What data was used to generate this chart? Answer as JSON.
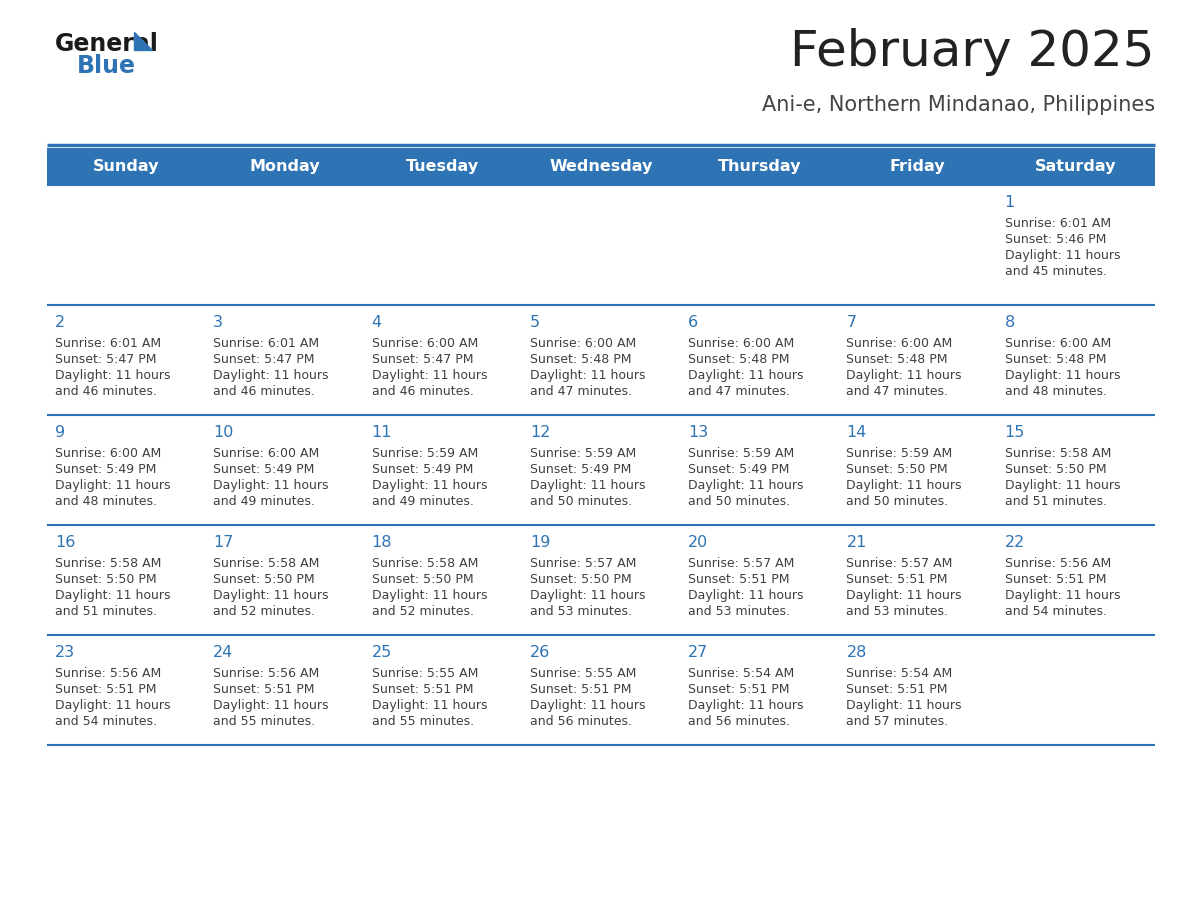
{
  "title": "February 2025",
  "subtitle": "Ani-e, Northern Mindanao, Philippines",
  "days_of_week": [
    "Sunday",
    "Monday",
    "Tuesday",
    "Wednesday",
    "Thursday",
    "Friday",
    "Saturday"
  ],
  "header_bg": "#2E74B5",
  "header_text": "#FFFFFF",
  "row_bg": "#FFFFFF",
  "separator_color": "#2E74B5",
  "day_number_color": "#2E74B5",
  "cell_text_color": "#404040",
  "title_color": "#222222",
  "subtitle_color": "#444444",
  "logo_general_color": "#1a1a1a",
  "logo_blue_color": "#2E74B5",
  "logo_triangle_color": "#2E74B5",
  "calendar": [
    [
      {
        "day": null,
        "sunrise": null,
        "sunset": null,
        "daylight": null
      },
      {
        "day": null,
        "sunrise": null,
        "sunset": null,
        "daylight": null
      },
      {
        "day": null,
        "sunrise": null,
        "sunset": null,
        "daylight": null
      },
      {
        "day": null,
        "sunrise": null,
        "sunset": null,
        "daylight": null
      },
      {
        "day": null,
        "sunrise": null,
        "sunset": null,
        "daylight": null
      },
      {
        "day": null,
        "sunrise": null,
        "sunset": null,
        "daylight": null
      },
      {
        "day": 1,
        "sunrise": "6:01 AM",
        "sunset": "5:46 PM",
        "daylight": "11 hours and 45 minutes."
      }
    ],
    [
      {
        "day": 2,
        "sunrise": "6:01 AM",
        "sunset": "5:47 PM",
        "daylight": "11 hours and 46 minutes."
      },
      {
        "day": 3,
        "sunrise": "6:01 AM",
        "sunset": "5:47 PM",
        "daylight": "11 hours and 46 minutes."
      },
      {
        "day": 4,
        "sunrise": "6:00 AM",
        "sunset": "5:47 PM",
        "daylight": "11 hours and 46 minutes."
      },
      {
        "day": 5,
        "sunrise": "6:00 AM",
        "sunset": "5:48 PM",
        "daylight": "11 hours and 47 minutes."
      },
      {
        "day": 6,
        "sunrise": "6:00 AM",
        "sunset": "5:48 PM",
        "daylight": "11 hours and 47 minutes."
      },
      {
        "day": 7,
        "sunrise": "6:00 AM",
        "sunset": "5:48 PM",
        "daylight": "11 hours and 47 minutes."
      },
      {
        "day": 8,
        "sunrise": "6:00 AM",
        "sunset": "5:48 PM",
        "daylight": "11 hours and 48 minutes."
      }
    ],
    [
      {
        "day": 9,
        "sunrise": "6:00 AM",
        "sunset": "5:49 PM",
        "daylight": "11 hours and 48 minutes."
      },
      {
        "day": 10,
        "sunrise": "6:00 AM",
        "sunset": "5:49 PM",
        "daylight": "11 hours and 49 minutes."
      },
      {
        "day": 11,
        "sunrise": "5:59 AM",
        "sunset": "5:49 PM",
        "daylight": "11 hours and 49 minutes."
      },
      {
        "day": 12,
        "sunrise": "5:59 AM",
        "sunset": "5:49 PM",
        "daylight": "11 hours and 50 minutes."
      },
      {
        "day": 13,
        "sunrise": "5:59 AM",
        "sunset": "5:49 PM",
        "daylight": "11 hours and 50 minutes."
      },
      {
        "day": 14,
        "sunrise": "5:59 AM",
        "sunset": "5:50 PM",
        "daylight": "11 hours and 50 minutes."
      },
      {
        "day": 15,
        "sunrise": "5:58 AM",
        "sunset": "5:50 PM",
        "daylight": "11 hours and 51 minutes."
      }
    ],
    [
      {
        "day": 16,
        "sunrise": "5:58 AM",
        "sunset": "5:50 PM",
        "daylight": "11 hours and 51 minutes."
      },
      {
        "day": 17,
        "sunrise": "5:58 AM",
        "sunset": "5:50 PM",
        "daylight": "11 hours and 52 minutes."
      },
      {
        "day": 18,
        "sunrise": "5:58 AM",
        "sunset": "5:50 PM",
        "daylight": "11 hours and 52 minutes."
      },
      {
        "day": 19,
        "sunrise": "5:57 AM",
        "sunset": "5:50 PM",
        "daylight": "11 hours and 53 minutes."
      },
      {
        "day": 20,
        "sunrise": "5:57 AM",
        "sunset": "5:51 PM",
        "daylight": "11 hours and 53 minutes."
      },
      {
        "day": 21,
        "sunrise": "5:57 AM",
        "sunset": "5:51 PM",
        "daylight": "11 hours and 53 minutes."
      },
      {
        "day": 22,
        "sunrise": "5:56 AM",
        "sunset": "5:51 PM",
        "daylight": "11 hours and 54 minutes."
      }
    ],
    [
      {
        "day": 23,
        "sunrise": "5:56 AM",
        "sunset": "5:51 PM",
        "daylight": "11 hours and 54 minutes."
      },
      {
        "day": 24,
        "sunrise": "5:56 AM",
        "sunset": "5:51 PM",
        "daylight": "11 hours and 55 minutes."
      },
      {
        "day": 25,
        "sunrise": "5:55 AM",
        "sunset": "5:51 PM",
        "daylight": "11 hours and 55 minutes."
      },
      {
        "day": 26,
        "sunrise": "5:55 AM",
        "sunset": "5:51 PM",
        "daylight": "11 hours and 56 minutes."
      },
      {
        "day": 27,
        "sunrise": "5:54 AM",
        "sunset": "5:51 PM",
        "daylight": "11 hours and 56 minutes."
      },
      {
        "day": 28,
        "sunrise": "5:54 AM",
        "sunset": "5:51 PM",
        "daylight": "11 hours and 57 minutes."
      },
      {
        "day": null,
        "sunrise": null,
        "sunset": null,
        "daylight": null
      }
    ]
  ]
}
